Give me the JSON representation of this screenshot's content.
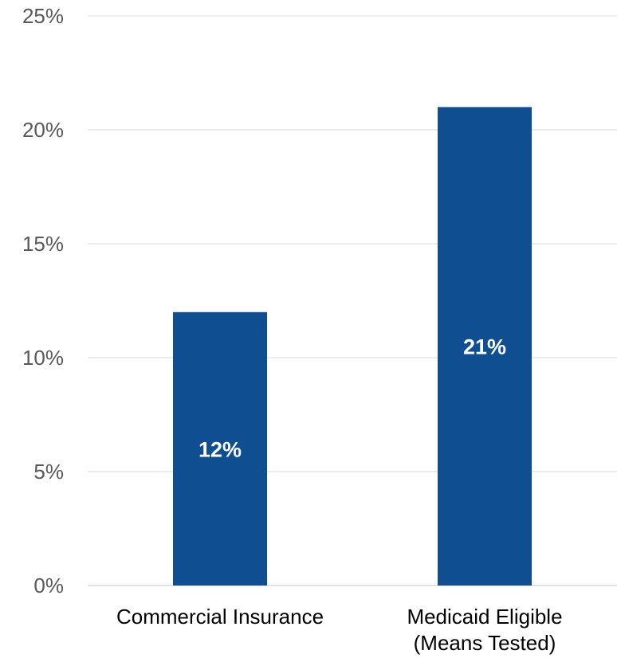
{
  "chart_data": {
    "type": "bar",
    "title": "",
    "xlabel": "",
    "ylabel": "",
    "categories": [
      [
        "Commercial Insurance"
      ],
      [
        "Medicaid Eligible",
        "(Means Tested)"
      ]
    ],
    "values": [
      12,
      21
    ],
    "data_labels": [
      "12%",
      "21%"
    ],
    "ylim": [
      0,
      25
    ],
    "yticks": [
      0,
      5,
      10,
      15,
      20,
      25
    ],
    "ytick_labels": [
      "0%",
      "5%",
      "10%",
      "15%",
      "20%",
      "25%"
    ],
    "grid": true,
    "legend": "none",
    "bar_color": "#0f4f91",
    "grid_color": "#d9d9d9"
  }
}
